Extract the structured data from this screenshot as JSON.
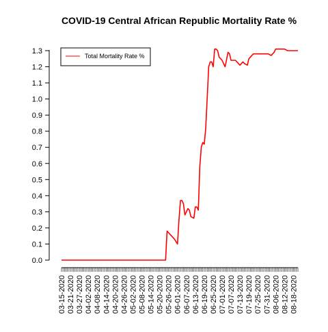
{
  "chart_data": {
    "type": "line",
    "title": "COVID-19 Central African Republic Mortality Rate %",
    "xlabel": "",
    "ylabel": "",
    "ylim": [
      0,
      1.3
    ],
    "y_ticks": [
      "0.0",
      "0.1",
      "0.2",
      "0.3",
      "0.4",
      "0.5",
      "0.6",
      "0.7",
      "0.8",
      "0.9",
      "1.0",
      "1.1",
      "1.2",
      "1.3"
    ],
    "x_tick_labels": [
      "03-15-2020",
      "03-21-2020",
      "03-27-2020",
      "04-02-2020",
      "04-08-2020",
      "04-14-2020",
      "04-20-2020",
      "04-26-2020",
      "05-02-2020",
      "05-08-2020",
      "05-14-2020",
      "05-20-2020",
      "05-26-2020",
      "06-01-2020",
      "06-07-2020",
      "06-13-2020",
      "06-19-2020",
      "06-25-2020",
      "07-01-2020",
      "07-07-2020",
      "07-13-2020",
      "07-19-2020",
      "07-25-2020",
      "07-31-2020",
      "08-06-2020",
      "08-12-2020",
      "08-18-2020"
    ],
    "grid": false,
    "legend_position": "top-left",
    "series": [
      {
        "name": "Total Mortality Rate %",
        "color": "#ff0000",
        "x": [
          "03-15-2020",
          "05-24-2020",
          "05-25-2020",
          "05-26-2020",
          "05-28-2020",
          "05-30-2020",
          "06-01-2020",
          "06-02-2020",
          "06-03-2020",
          "06-04-2020",
          "06-05-2020",
          "06-06-2020",
          "06-08-2020",
          "06-09-2020",
          "06-10-2020",
          "06-12-2020",
          "06-13-2020",
          "06-14-2020",
          "06-15-2020",
          "06-16-2020",
          "06-17-2020",
          "06-18-2020",
          "06-19-2020",
          "06-20-2020",
          "06-22-2020",
          "06-23-2020",
          "06-24-2020",
          "06-25-2020",
          "06-26-2020",
          "06-27-2020",
          "06-28-2020",
          "06-29-2020",
          "07-01-2020",
          "07-02-2020",
          "07-03-2020",
          "07-05-2020",
          "07-06-2020",
          "07-07-2020",
          "07-08-2020",
          "07-10-2020",
          "07-13-2020",
          "07-15-2020",
          "07-16-2020",
          "07-18-2020",
          "07-19-2020",
          "07-20-2020",
          "07-22-2020",
          "07-24-2020",
          "07-26-2020",
          "07-30-2020",
          "08-01-2020",
          "08-03-2020",
          "08-04-2020",
          "08-05-2020",
          "08-06-2020",
          "08-08-2020",
          "08-10-2020",
          "08-12-2020",
          "08-14-2020",
          "08-17-2020",
          "08-21-2020"
        ],
        "values": [
          0.0,
          0.0,
          0.18,
          0.17,
          0.15,
          0.13,
          0.1,
          0.25,
          0.37,
          0.37,
          0.35,
          0.28,
          0.32,
          0.31,
          0.27,
          0.26,
          0.33,
          0.33,
          0.31,
          0.58,
          0.7,
          0.73,
          0.72,
          0.82,
          1.2,
          1.23,
          1.23,
          1.2,
          1.31,
          1.31,
          1.3,
          1.26,
          1.24,
          1.22,
          1.2,
          1.29,
          1.28,
          1.24,
          1.24,
          1.24,
          1.21,
          1.23,
          1.22,
          1.21,
          1.25,
          1.26,
          1.28,
          1.28,
          1.28,
          1.28,
          1.28,
          1.27,
          1.28,
          1.29,
          1.31,
          1.31,
          1.31,
          1.31,
          1.3,
          1.3,
          1.3
        ]
      }
    ]
  }
}
